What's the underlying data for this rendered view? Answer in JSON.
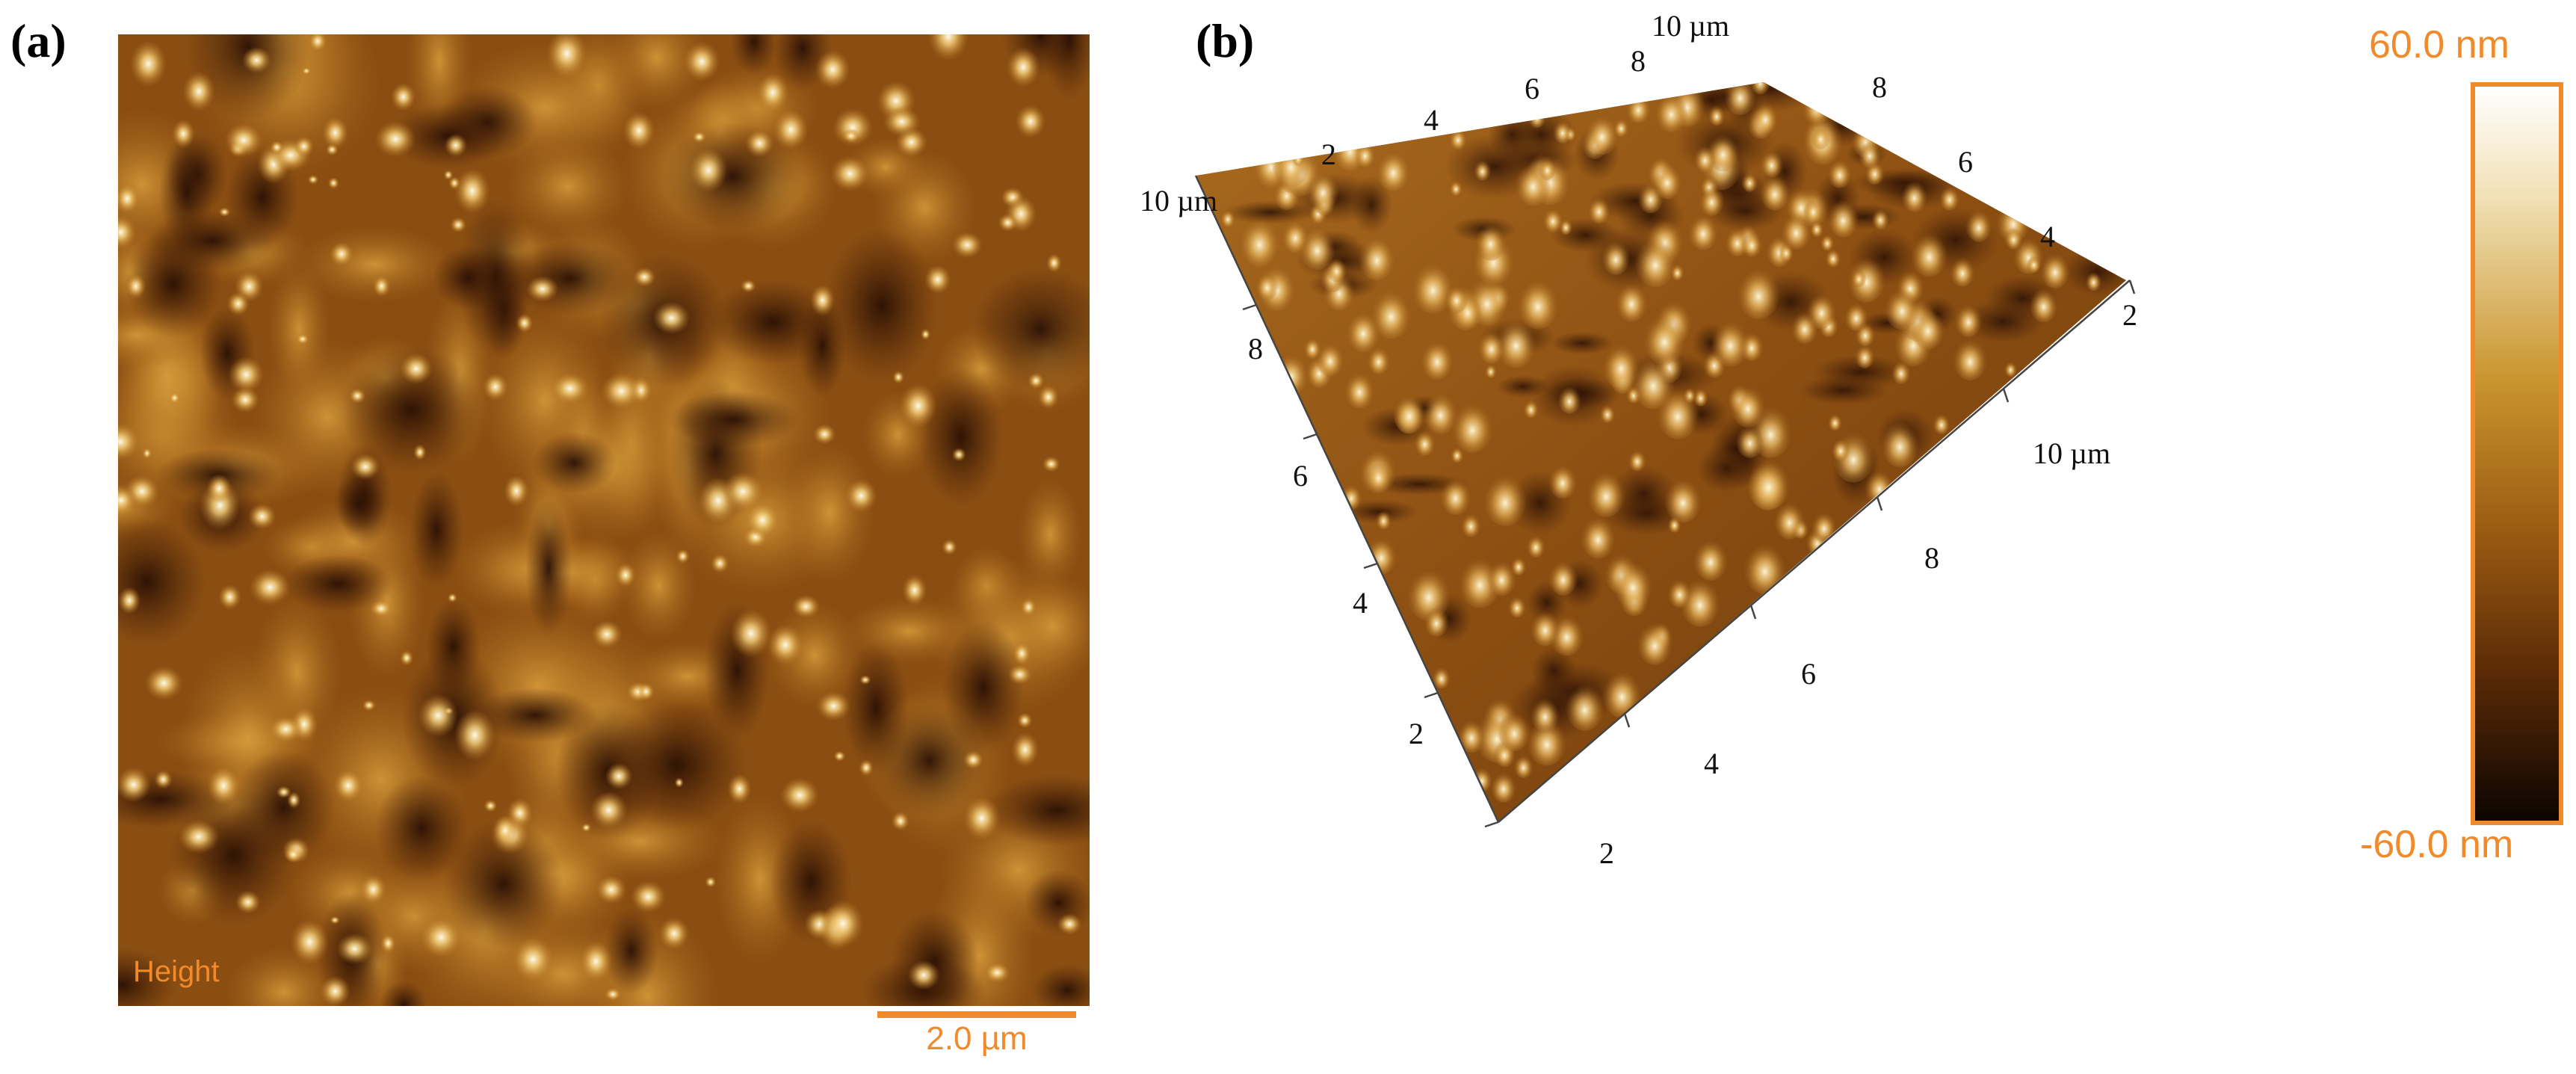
{
  "panels": {
    "a": {
      "label": "(a)",
      "overlay_text": "Height",
      "scale_bar": "2.0 µm"
    },
    "b": {
      "label": "(b)",
      "axis_left_ticks": [
        "10 µm",
        "8",
        "6",
        "4",
        "2"
      ],
      "axis_front_ticks": [
        "2",
        "4",
        "6",
        "8",
        "10 µm"
      ],
      "axis_back_left_ticks": [
        "2",
        "4",
        "6",
        "8",
        "10 µm"
      ],
      "axis_back_right_ticks": [
        "8",
        "6",
        "4",
        "2"
      ]
    }
  },
  "colorbar": {
    "max": "60.0 nm",
    "min": "-60.0 nm"
  },
  "colors": {
    "accent": "#f08a2a",
    "dark": "#2a1206",
    "mid": "#a8661a",
    "bright": "#fff6d8"
  }
}
